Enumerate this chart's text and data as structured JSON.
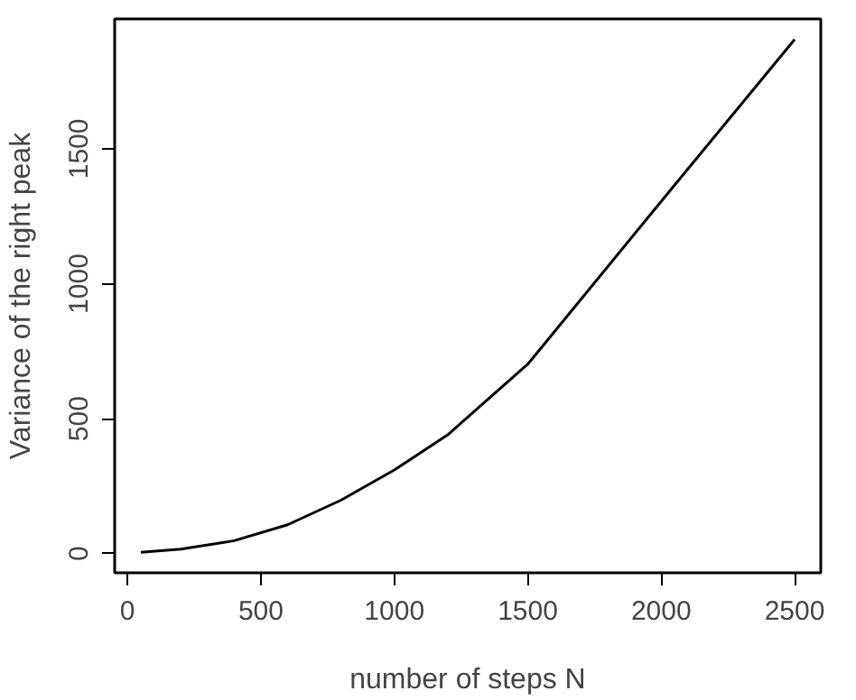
{
  "chart_data": {
    "type": "line",
    "xlabel": "number of steps N",
    "ylabel": "Variance of the right peak",
    "x": [
      50,
      200,
      400,
      600,
      800,
      1000,
      1200,
      1500,
      2000,
      2500
    ],
    "series": [
      {
        "color": "#000000",
        "values": [
          5,
          17,
          48,
          107,
          198,
          310,
          440,
          702,
          1305,
          1905
        ]
      }
    ],
    "xlim": [
      -48,
      2598
    ],
    "ylim": [
      -71,
      1981
    ],
    "xticks": [
      0,
      500,
      1000,
      1500,
      2000,
      2500
    ],
    "yticks": [
      0,
      500,
      1000,
      1500
    ],
    "grid": false,
    "marker": "none",
    "line_style": "solid"
  }
}
